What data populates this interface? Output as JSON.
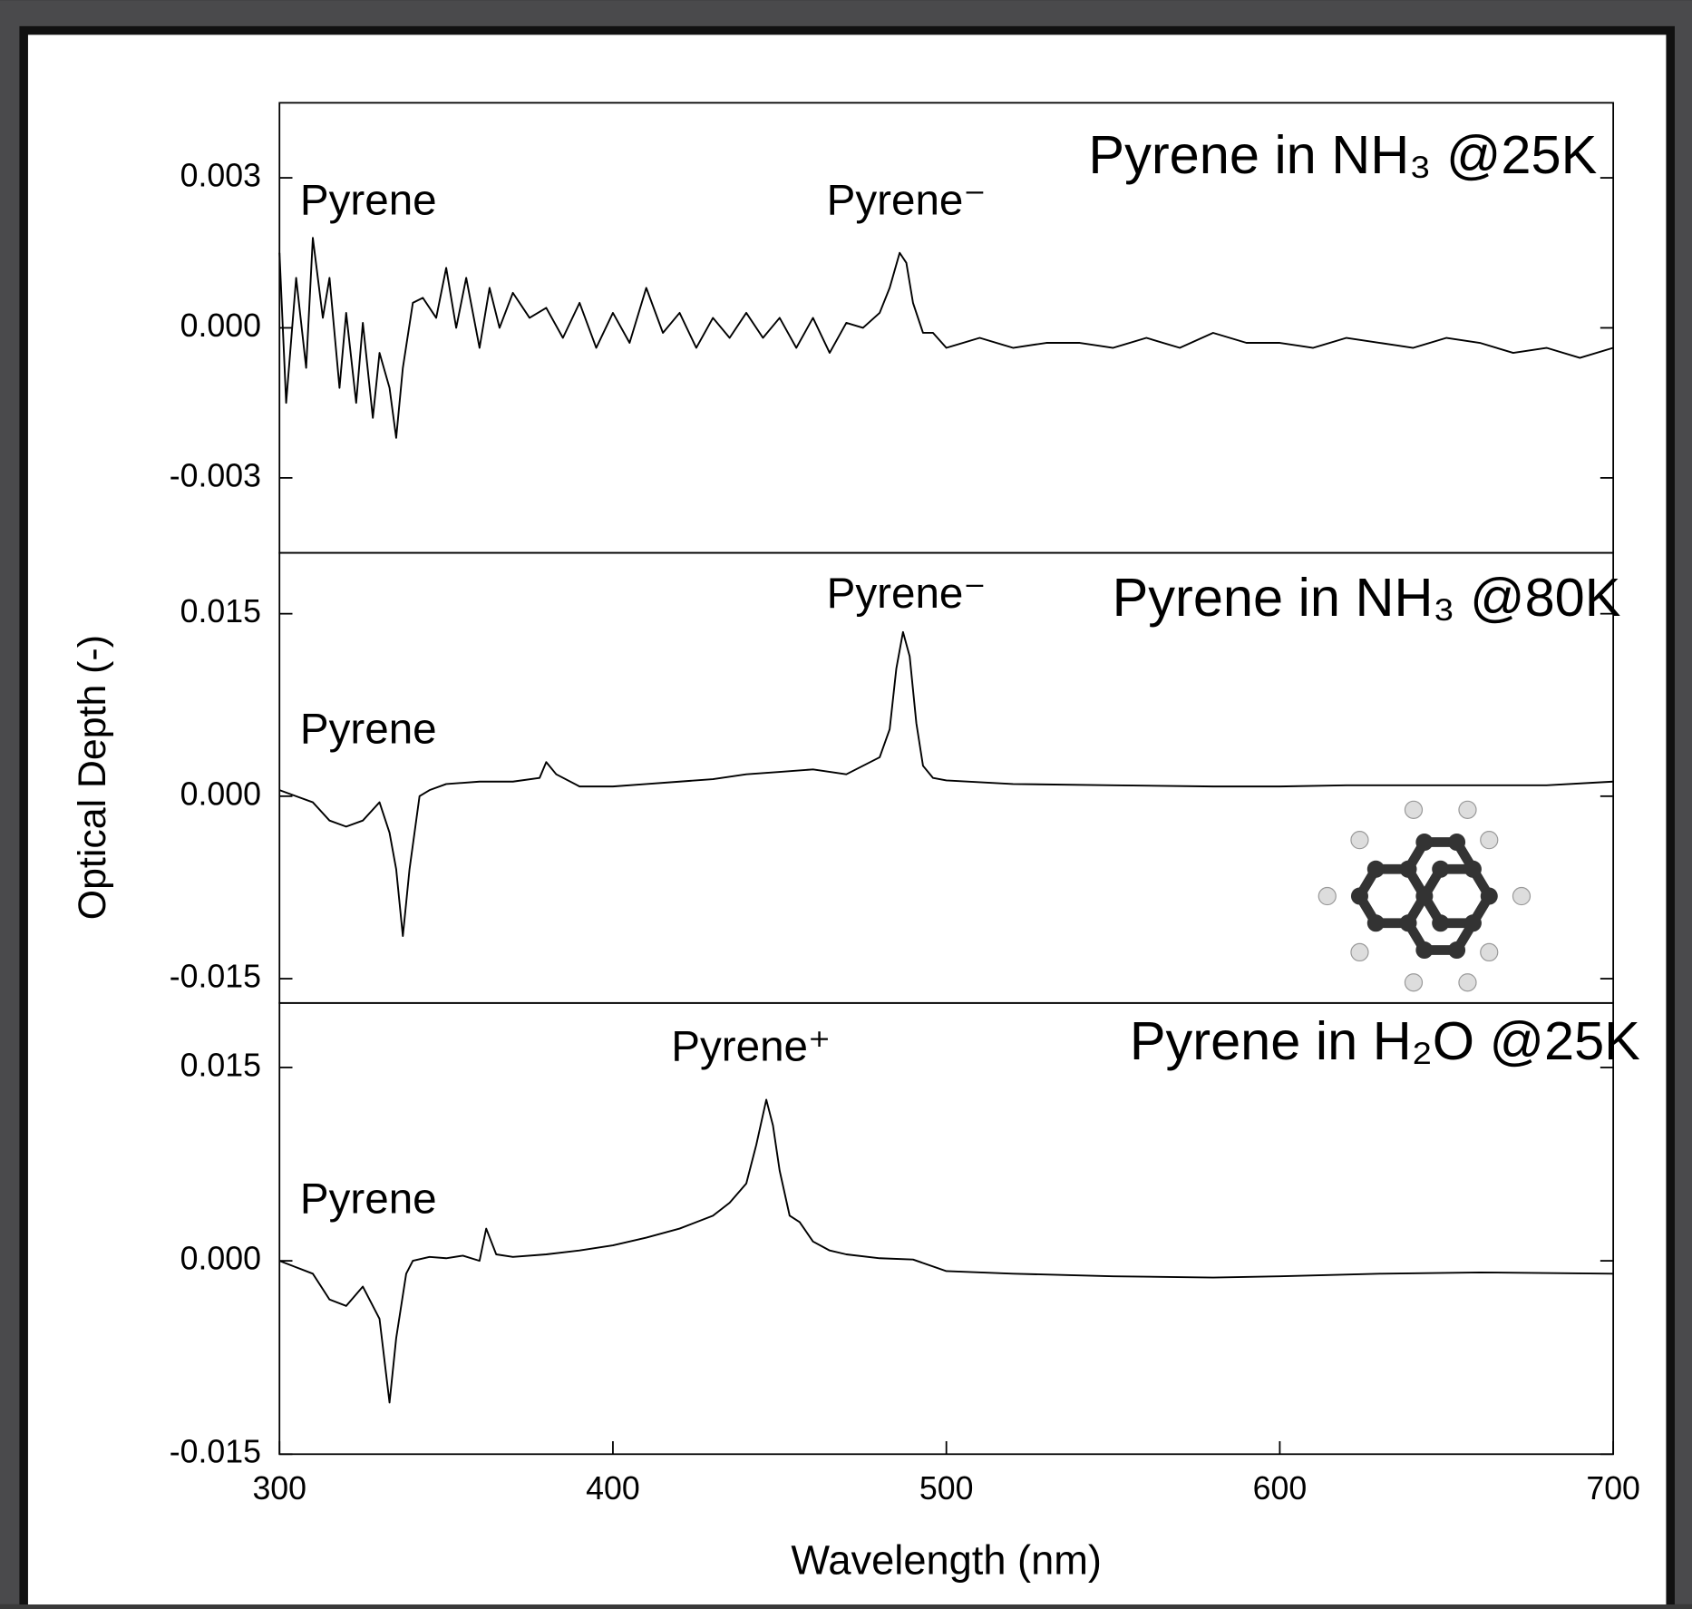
{
  "chart_data": [
    {
      "type": "line",
      "title": "Pyrene in NH₃ @25K",
      "annotations": [
        "Pyrene",
        "Pyrene⁻"
      ],
      "series": [
        {
          "color": "#000000",
          "x": [
            300,
            302,
            305,
            308,
            310,
            313,
            315,
            318,
            320,
            323,
            325,
            328,
            330,
            333,
            335,
            337,
            340,
            343,
            347,
            350,
            353,
            356,
            360,
            363,
            366,
            370,
            375,
            380,
            385,
            390,
            395,
            400,
            405,
            410,
            415,
            420,
            425,
            430,
            435,
            440,
            445,
            450,
            455,
            460,
            465,
            470,
            475,
            480,
            483,
            486,
            488,
            490,
            493,
            496,
            500,
            510,
            520,
            530,
            540,
            550,
            560,
            570,
            580,
            590,
            600,
            610,
            620,
            630,
            640,
            650,
            660,
            670,
            680,
            690,
            700
          ],
          "values": [
            0.0015,
            -0.0015,
            0.001,
            -0.0008,
            0.0018,
            0.0002,
            0.001,
            -0.0012,
            0.0003,
            -0.0015,
            0.0001,
            -0.0018,
            -0.0005,
            -0.0012,
            -0.0022,
            -0.0008,
            0.0005,
            0.0006,
            0.0002,
            0.0012,
            0.0,
            0.001,
            -0.0004,
            0.0008,
            0.0,
            0.0007,
            0.0002,
            0.0004,
            -0.0002,
            0.0005,
            -0.0004,
            0.0003,
            -0.0003,
            0.0008,
            -0.0001,
            0.0003,
            -0.0004,
            0.0002,
            -0.0002,
            0.0003,
            -0.0002,
            0.0002,
            -0.0004,
            0.0002,
            -0.0005,
            0.0001,
            0.0,
            0.0003,
            0.0008,
            0.0015,
            0.0013,
            0.0005,
            -0.0001,
            -0.0001,
            -0.0004,
            -0.0002,
            -0.0004,
            -0.0003,
            -0.0003,
            -0.0004,
            -0.0002,
            -0.0004,
            -0.0001,
            -0.0003,
            -0.0003,
            -0.0004,
            -0.0002,
            -0.0003,
            -0.0004,
            -0.0002,
            -0.0003,
            -0.0005,
            -0.0004,
            -0.0006,
            -0.0004
          ]
        }
      ],
      "xlim": [
        300,
        700
      ],
      "ylim": [
        -0.0045,
        0.0045
      ],
      "yticks": [
        -0.003,
        {
          "value": 0,
          "label": "0.000"
        },
        0.003
      ]
    },
    {
      "type": "line",
      "title": "Pyrene in NH₃ @80K",
      "annotations": [
        "Pyrene⁻",
        "Pyrene"
      ],
      "ylabel": "Optical Depth (-)",
      "series": [
        {
          "color": "#000000",
          "x": [
            300,
            305,
            310,
            315,
            320,
            325,
            330,
            333,
            335,
            337,
            339,
            342,
            345,
            350,
            360,
            370,
            378,
            380,
            383,
            390,
            400,
            410,
            420,
            430,
            440,
            450,
            460,
            470,
            475,
            480,
            483,
            485,
            487,
            489,
            491,
            493,
            496,
            500,
            520,
            550,
            580,
            600,
            620,
            650,
            680,
            700
          ],
          "values": [
            0.0005,
            0.0,
            -0.0005,
            -0.002,
            -0.0025,
            -0.002,
            -0.0005,
            -0.003,
            -0.006,
            -0.0115,
            -0.006,
            0.0,
            0.0005,
            0.001,
            0.0012,
            0.0012,
            0.0015,
            0.0028,
            0.0018,
            0.0008,
            0.0008,
            0.001,
            0.0012,
            0.0014,
            0.0018,
            0.002,
            0.0022,
            0.0018,
            0.0025,
            0.0032,
            0.0055,
            0.0105,
            0.0135,
            0.0115,
            0.006,
            0.0025,
            0.0015,
            0.0013,
            0.001,
            0.0009,
            0.0008,
            0.0008,
            0.0009,
            0.0009,
            0.0009,
            0.0012
          ]
        }
      ],
      "xlim": [
        300,
        700
      ],
      "ylim": [
        -0.017,
        0.02
      ],
      "yticks": [
        {
          "value": -0.015,
          "label": "-0.015"
        },
        {
          "value": 0,
          "label": "0.000"
        },
        0.015
      ]
    },
    {
      "type": "line",
      "title": "Pyrene in H₂O @25K",
      "annotations": [
        "Pyrene⁺",
        "Pyrene"
      ],
      "xlabel": "Wavelength (nm)",
      "series": [
        {
          "color": "#000000",
          "x": [
            300,
            305,
            310,
            315,
            320,
            325,
            330,
            333,
            335,
            338,
            340,
            345,
            350,
            355,
            360,
            362,
            365,
            370,
            380,
            390,
            400,
            410,
            420,
            430,
            435,
            440,
            443,
            446,
            448,
            450,
            453,
            456,
            460,
            465,
            470,
            480,
            490,
            500,
            520,
            550,
            580,
            600,
            630,
            660,
            700
          ],
          "values": [
            0.0,
            -0.0005,
            -0.001,
            -0.003,
            -0.0035,
            -0.002,
            -0.0045,
            -0.011,
            -0.006,
            -0.001,
            0.0,
            0.0003,
            0.0002,
            0.0004,
            0.0,
            0.0025,
            0.0005,
            0.0003,
            0.0005,
            0.0008,
            0.0012,
            0.0018,
            0.0025,
            0.0035,
            0.0045,
            0.006,
            0.009,
            0.0125,
            0.0105,
            0.007,
            0.0035,
            0.003,
            0.0015,
            0.0008,
            0.0005,
            0.0002,
            0.0001,
            -0.0008,
            -0.001,
            -0.0012,
            -0.0013,
            -0.0012,
            -0.001,
            -0.0009,
            -0.001
          ]
        }
      ],
      "xlim": [
        300,
        700
      ],
      "ylim": [
        -0.015,
        0.02
      ],
      "xticks": [
        300,
        400,
        500,
        600,
        700
      ],
      "yticks": [
        {
          "value": -0.015,
          "label": "-0.015"
        },
        {
          "value": 0,
          "label": "0.000"
        },
        0.015
      ]
    }
  ]
}
